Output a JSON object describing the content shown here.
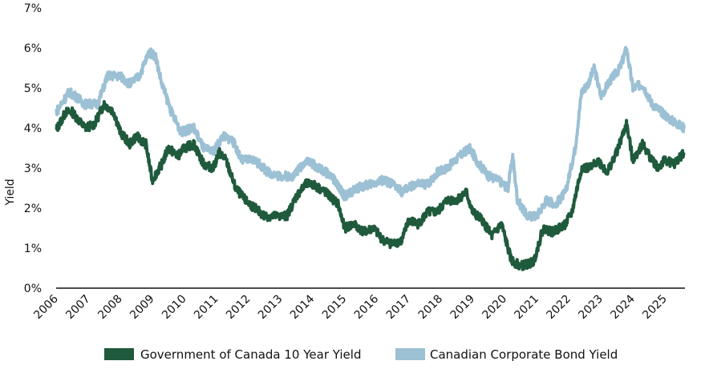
{
  "chart_data": {
    "type": "line",
    "title": "",
    "xlabel": "",
    "ylabel": "Yield",
    "ylim": [
      0,
      7
    ],
    "xlim": [
      2006,
      2025.65
    ],
    "y_ticks": [
      "0%",
      "1%",
      "2%",
      "3%",
      "4%",
      "5%",
      "6%",
      "7%"
    ],
    "x_ticks": [
      "2006",
      "2007",
      "2008",
      "2009",
      "2010",
      "2011",
      "2012",
      "2013",
      "2014",
      "2015",
      "2016",
      "2017",
      "2018",
      "2019",
      "2020",
      "2021",
      "2022",
      "2023",
      "2024",
      "2025"
    ],
    "grid": false,
    "legend_position": "bottom",
    "series": [
      {
        "name": "Government of Canada 10 Year Yield",
        "color": "#1f5a3c",
        "points": [
          [
            2006.0,
            3.95
          ],
          [
            2006.3,
            4.4
          ],
          [
            2006.5,
            4.4
          ],
          [
            2006.9,
            4.0
          ],
          [
            2007.2,
            4.1
          ],
          [
            2007.5,
            4.6
          ],
          [
            2007.8,
            4.4
          ],
          [
            2008.0,
            3.9
          ],
          [
            2008.3,
            3.6
          ],
          [
            2008.5,
            3.8
          ],
          [
            2008.8,
            3.6
          ],
          [
            2009.0,
            2.7
          ],
          [
            2009.3,
            3.1
          ],
          [
            2009.5,
            3.5
          ],
          [
            2009.8,
            3.3
          ],
          [
            2010.0,
            3.5
          ],
          [
            2010.3,
            3.6
          ],
          [
            2010.6,
            3.1
          ],
          [
            2010.9,
            3.0
          ],
          [
            2011.1,
            3.4
          ],
          [
            2011.3,
            3.2
          ],
          [
            2011.6,
            2.5
          ],
          [
            2011.9,
            2.2
          ],
          [
            2012.2,
            2.0
          ],
          [
            2012.5,
            1.8
          ],
          [
            2012.9,
            1.8
          ],
          [
            2013.2,
            1.8
          ],
          [
            2013.5,
            2.3
          ],
          [
            2013.8,
            2.6
          ],
          [
            2014.0,
            2.6
          ],
          [
            2014.4,
            2.4
          ],
          [
            2014.8,
            2.1
          ],
          [
            2015.0,
            1.5
          ],
          [
            2015.3,
            1.6
          ],
          [
            2015.6,
            1.4
          ],
          [
            2015.9,
            1.5
          ],
          [
            2016.2,
            1.2
          ],
          [
            2016.5,
            1.1
          ],
          [
            2016.8,
            1.2
          ],
          [
            2017.0,
            1.7
          ],
          [
            2017.3,
            1.6
          ],
          [
            2017.6,
            1.9
          ],
          [
            2017.9,
            1.9
          ],
          [
            2018.2,
            2.2
          ],
          [
            2018.5,
            2.2
          ],
          [
            2018.8,
            2.4
          ],
          [
            2019.0,
            1.9
          ],
          [
            2019.3,
            1.7
          ],
          [
            2019.6,
            1.3
          ],
          [
            2019.9,
            1.6
          ],
          [
            2020.2,
            0.7
          ],
          [
            2020.5,
            0.55
          ],
          [
            2020.9,
            0.65
          ],
          [
            2021.2,
            1.5
          ],
          [
            2021.5,
            1.4
          ],
          [
            2021.9,
            1.6
          ],
          [
            2022.1,
            1.9
          ],
          [
            2022.4,
            3.0
          ],
          [
            2022.7,
            3.0
          ],
          [
            2022.9,
            3.2
          ],
          [
            2023.2,
            2.9
          ],
          [
            2023.5,
            3.4
          ],
          [
            2023.8,
            4.1
          ],
          [
            2024.0,
            3.2
          ],
          [
            2024.3,
            3.6
          ],
          [
            2024.6,
            3.2
          ],
          [
            2024.8,
            3.0
          ],
          [
            2025.0,
            3.2
          ],
          [
            2025.3,
            3.1
          ],
          [
            2025.6,
            3.4
          ]
        ]
      },
      {
        "name": "Canadian Corporate Bond Yield",
        "color": "#9cc0d4",
        "points": [
          [
            2006.0,
            4.4
          ],
          [
            2006.4,
            4.9
          ],
          [
            2006.6,
            4.8
          ],
          [
            2006.9,
            4.6
          ],
          [
            2007.3,
            4.6
          ],
          [
            2007.6,
            5.3
          ],
          [
            2008.0,
            5.3
          ],
          [
            2008.3,
            5.1
          ],
          [
            2008.6,
            5.3
          ],
          [
            2008.9,
            5.9
          ],
          [
            2009.1,
            5.8
          ],
          [
            2009.3,
            5.1
          ],
          [
            2009.6,
            4.4
          ],
          [
            2009.9,
            3.9
          ],
          [
            2010.3,
            4.0
          ],
          [
            2010.6,
            3.5
          ],
          [
            2010.9,
            3.4
          ],
          [
            2011.2,
            3.8
          ],
          [
            2011.5,
            3.7
          ],
          [
            2011.8,
            3.2
          ],
          [
            2012.2,
            3.2
          ],
          [
            2012.6,
            2.9
          ],
          [
            2013.0,
            2.8
          ],
          [
            2013.4,
            2.8
          ],
          [
            2013.8,
            3.2
          ],
          [
            2014.2,
            3.0
          ],
          [
            2014.6,
            2.8
          ],
          [
            2015.0,
            2.3
          ],
          [
            2015.4,
            2.5
          ],
          [
            2015.8,
            2.6
          ],
          [
            2016.2,
            2.7
          ],
          [
            2016.5,
            2.6
          ],
          [
            2016.8,
            2.4
          ],
          [
            2017.2,
            2.6
          ],
          [
            2017.6,
            2.6
          ],
          [
            2017.9,
            2.9
          ],
          [
            2018.2,
            3.0
          ],
          [
            2018.6,
            3.3
          ],
          [
            2018.9,
            3.5
          ],
          [
            2019.2,
            3.1
          ],
          [
            2019.5,
            2.8
          ],
          [
            2019.8,
            2.7
          ],
          [
            2020.1,
            2.5
          ],
          [
            2020.25,
            3.3
          ],
          [
            2020.4,
            2.2
          ],
          [
            2020.7,
            1.8
          ],
          [
            2021.0,
            1.8
          ],
          [
            2021.3,
            2.2
          ],
          [
            2021.6,
            2.1
          ],
          [
            2021.9,
            2.4
          ],
          [
            2022.2,
            3.5
          ],
          [
            2022.4,
            4.9
          ],
          [
            2022.6,
            5.1
          ],
          [
            2022.8,
            5.5
          ],
          [
            2023.0,
            4.8
          ],
          [
            2023.3,
            5.2
          ],
          [
            2023.6,
            5.5
          ],
          [
            2023.8,
            6.0
          ],
          [
            2024.0,
            5.0
          ],
          [
            2024.3,
            5.1
          ],
          [
            2024.6,
            4.6
          ],
          [
            2024.9,
            4.4
          ],
          [
            2025.2,
            4.2
          ],
          [
            2025.6,
            4.0
          ]
        ]
      }
    ]
  }
}
